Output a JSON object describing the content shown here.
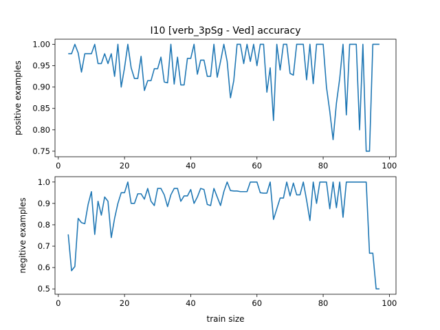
{
  "title": "I10 [verb_3pSg - Ved] accuracy",
  "colors": {
    "line": "#1f77b4"
  },
  "chart_data": [
    {
      "type": "line",
      "ylabel": "positive examples",
      "xlabel": "",
      "xlim": [
        -1,
        102
      ],
      "ylim": [
        0.737,
        1.012
      ],
      "xticks": [
        0,
        20,
        40,
        60,
        80,
        100
      ],
      "xtick_labels": [
        "0",
        "20",
        "40",
        "60",
        "80",
        "100"
      ],
      "yticks": [
        0.75,
        0.8,
        0.85,
        0.9,
        0.95,
        1.0
      ],
      "ytick_labels": [
        "0.75",
        "0.80",
        "0.85",
        "0.90",
        "0.95",
        "1.00"
      ],
      "x": [
        3,
        4,
        5,
        6,
        7,
        8,
        9,
        10,
        11,
        12,
        13,
        14,
        15,
        16,
        17,
        18,
        19,
        20,
        21,
        22,
        23,
        24,
        25,
        26,
        27,
        28,
        29,
        30,
        31,
        32,
        33,
        34,
        35,
        36,
        37,
        38,
        39,
        40,
        41,
        42,
        43,
        44,
        45,
        46,
        47,
        48,
        49,
        50,
        51,
        52,
        53,
        54,
        55,
        56,
        57,
        58,
        59,
        60,
        61,
        62,
        63,
        64,
        65,
        66,
        67,
        68,
        69,
        70,
        71,
        72,
        73,
        74,
        75,
        76,
        77,
        78,
        79,
        80,
        81,
        82,
        83,
        84,
        85,
        86,
        87,
        88,
        89,
        90,
        91,
        92,
        93,
        94,
        95,
        96,
        97
      ],
      "y": [
        0.978,
        0.978,
        1.0,
        0.98,
        0.935,
        0.978,
        0.978,
        0.978,
        1.0,
        0.955,
        0.955,
        0.978,
        0.955,
        0.978,
        0.925,
        1.0,
        0.9,
        0.945,
        1.0,
        0.945,
        0.92,
        0.92,
        0.972,
        0.892,
        0.915,
        0.915,
        0.943,
        0.943,
        0.97,
        0.912,
        0.91,
        1.0,
        0.907,
        0.97,
        0.905,
        0.905,
        0.967,
        0.967,
        1.0,
        0.93,
        0.963,
        0.963,
        0.925,
        0.925,
        1.0,
        0.923,
        0.96,
        1.0,
        0.96,
        0.875,
        0.915,
        1.0,
        1.0,
        0.955,
        1.0,
        0.96,
        1.0,
        0.95,
        1.0,
        1.0,
        0.888,
        0.945,
        0.822,
        1.0,
        0.94,
        1.0,
        1.0,
        0.932,
        0.928,
        1.0,
        1.0,
        1.0,
        0.917,
        1.0,
        0.908,
        1.0,
        1.0,
        1.0,
        0.9,
        0.843,
        0.777,
        0.862,
        0.92,
        1.0,
        0.835,
        1.0,
        1.0,
        1.0,
        0.8,
        1.0,
        0.75,
        0.75,
        1.0,
        1.0,
        1.0
      ]
    },
    {
      "type": "line",
      "ylabel": "negitive examples",
      "xlabel": "train size",
      "xlim": [
        -1,
        102
      ],
      "ylim": [
        0.475,
        1.025
      ],
      "xticks": [
        0,
        20,
        40,
        60,
        80,
        100
      ],
      "xtick_labels": [
        "0",
        "20",
        "40",
        "60",
        "80",
        "100"
      ],
      "yticks": [
        0.5,
        0.6,
        0.7,
        0.8,
        0.9,
        1.0
      ],
      "ytick_labels": [
        "0.5",
        "0.6",
        "0.7",
        "0.8",
        "0.9",
        "1.0"
      ],
      "x": [
        3,
        4,
        5,
        6,
        7,
        8,
        9,
        10,
        11,
        12,
        13,
        14,
        15,
        16,
        17,
        18,
        19,
        20,
        21,
        22,
        23,
        24,
        25,
        26,
        27,
        28,
        29,
        30,
        31,
        32,
        33,
        34,
        35,
        36,
        37,
        38,
        39,
        40,
        41,
        42,
        43,
        44,
        45,
        46,
        47,
        48,
        49,
        50,
        51,
        52,
        53,
        54,
        55,
        56,
        57,
        58,
        59,
        60,
        61,
        62,
        63,
        64,
        65,
        66,
        67,
        68,
        69,
        70,
        71,
        72,
        73,
        74,
        75,
        76,
        77,
        78,
        79,
        80,
        81,
        82,
        83,
        84,
        85,
        86,
        87,
        88,
        89,
        90,
        91,
        92,
        93,
        94,
        95,
        96,
        97
      ],
      "y": [
        0.755,
        0.585,
        0.605,
        0.83,
        0.81,
        0.805,
        0.895,
        0.955,
        0.755,
        0.91,
        0.845,
        0.93,
        0.91,
        0.74,
        0.83,
        0.9,
        0.95,
        0.95,
        1.0,
        0.9,
        0.9,
        0.945,
        0.945,
        0.92,
        0.97,
        0.91,
        0.89,
        0.97,
        0.97,
        0.94,
        0.885,
        0.94,
        0.97,
        0.97,
        0.91,
        0.935,
        0.935,
        0.965,
        0.9,
        0.93,
        0.97,
        0.965,
        0.895,
        0.89,
        0.97,
        0.93,
        0.89,
        0.955,
        1.0,
        0.96,
        0.958,
        0.958,
        0.955,
        0.955,
        0.955,
        1.0,
        1.0,
        1.0,
        0.95,
        0.948,
        0.948,
        1.0,
        0.825,
        0.875,
        0.925,
        0.925,
        1.0,
        0.935,
        0.995,
        0.94,
        0.94,
        1.0,
        0.915,
        0.82,
        1.0,
        0.9,
        1.0,
        1.0,
        1.0,
        0.875,
        1.0,
        0.88,
        1.0,
        0.835,
        1.0,
        1.0,
        1.0,
        1.0,
        1.0,
        1.0,
        1.0,
        0.667,
        0.667,
        0.5,
        0.5
      ]
    }
  ]
}
